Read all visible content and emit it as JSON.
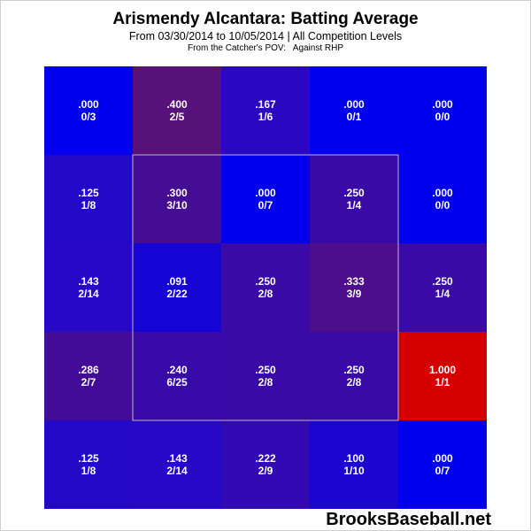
{
  "chart_data": {
    "type": "heatmap",
    "title": "Arismendy Alcantara: Batting Average",
    "subtitle": "From 03/30/2014 to 10/05/2014 | All Competition Levels",
    "perspective": "From the Catcher's POV:   Against RHP",
    "watermark": "BrooksBaseball.net",
    "rows": 5,
    "cols": 5,
    "strike_zone": {
      "rows": [
        1,
        3
      ],
      "cols": [
        1,
        3
      ]
    },
    "cells": [
      [
        {
          "avg": ".000",
          "frac": "0/3",
          "color": "#0000ee"
        },
        {
          "avg": ".400",
          "frac": "2/5",
          "color": "#58107a"
        },
        {
          "avg": ".167",
          "frac": "1/6",
          "color": "#2a08c2"
        },
        {
          "avg": ".000",
          "frac": "0/1",
          "color": "#0000ee"
        },
        {
          "avg": ".000",
          "frac": "0/0",
          "color": "#0000ee"
        }
      ],
      [
        {
          "avg": ".125",
          "frac": "1/8",
          "color": "#2308c8"
        },
        {
          "avg": ".300",
          "frac": "3/10",
          "color": "#450d94"
        },
        {
          "avg": ".000",
          "frac": "0/7",
          "color": "#0000ee"
        },
        {
          "avg": ".250",
          "frac": "1/4",
          "color": "#3a0aa6"
        },
        {
          "avg": ".000",
          "frac": "0/0",
          "color": "#0000ee"
        }
      ],
      [
        {
          "avg": ".143",
          "frac": "2/14",
          "color": "#2608c6"
        },
        {
          "avg": ".091",
          "frac": "2/22",
          "color": "#1604d4"
        },
        {
          "avg": ".250",
          "frac": "2/8",
          "color": "#3a0aa6"
        },
        {
          "avg": ".333",
          "frac": "3/9",
          "color": "#4c0e8a"
        },
        {
          "avg": ".250",
          "frac": "1/4",
          "color": "#3a0aa6"
        }
      ],
      [
        {
          "avg": ".286",
          "frac": "2/7",
          "color": "#420c98"
        },
        {
          "avg": ".240",
          "frac": "6/25",
          "color": "#380aa9"
        },
        {
          "avg": ".250",
          "frac": "2/8",
          "color": "#3a0aa6"
        },
        {
          "avg": ".250",
          "frac": "2/8",
          "color": "#3a0aa6"
        },
        {
          "avg": "1.000",
          "frac": "1/1",
          "color": "#d40000"
        }
      ],
      [
        {
          "avg": ".125",
          "frac": "1/8",
          "color": "#2308c8"
        },
        {
          "avg": ".143",
          "frac": "2/14",
          "color": "#2608c6"
        },
        {
          "avg": ".222",
          "frac": "2/9",
          "color": "#3309b4"
        },
        {
          "avg": ".100",
          "frac": "1/10",
          "color": "#1b05d0"
        },
        {
          "avg": ".000",
          "frac": "0/7",
          "color": "#0000ee"
        }
      ]
    ]
  }
}
